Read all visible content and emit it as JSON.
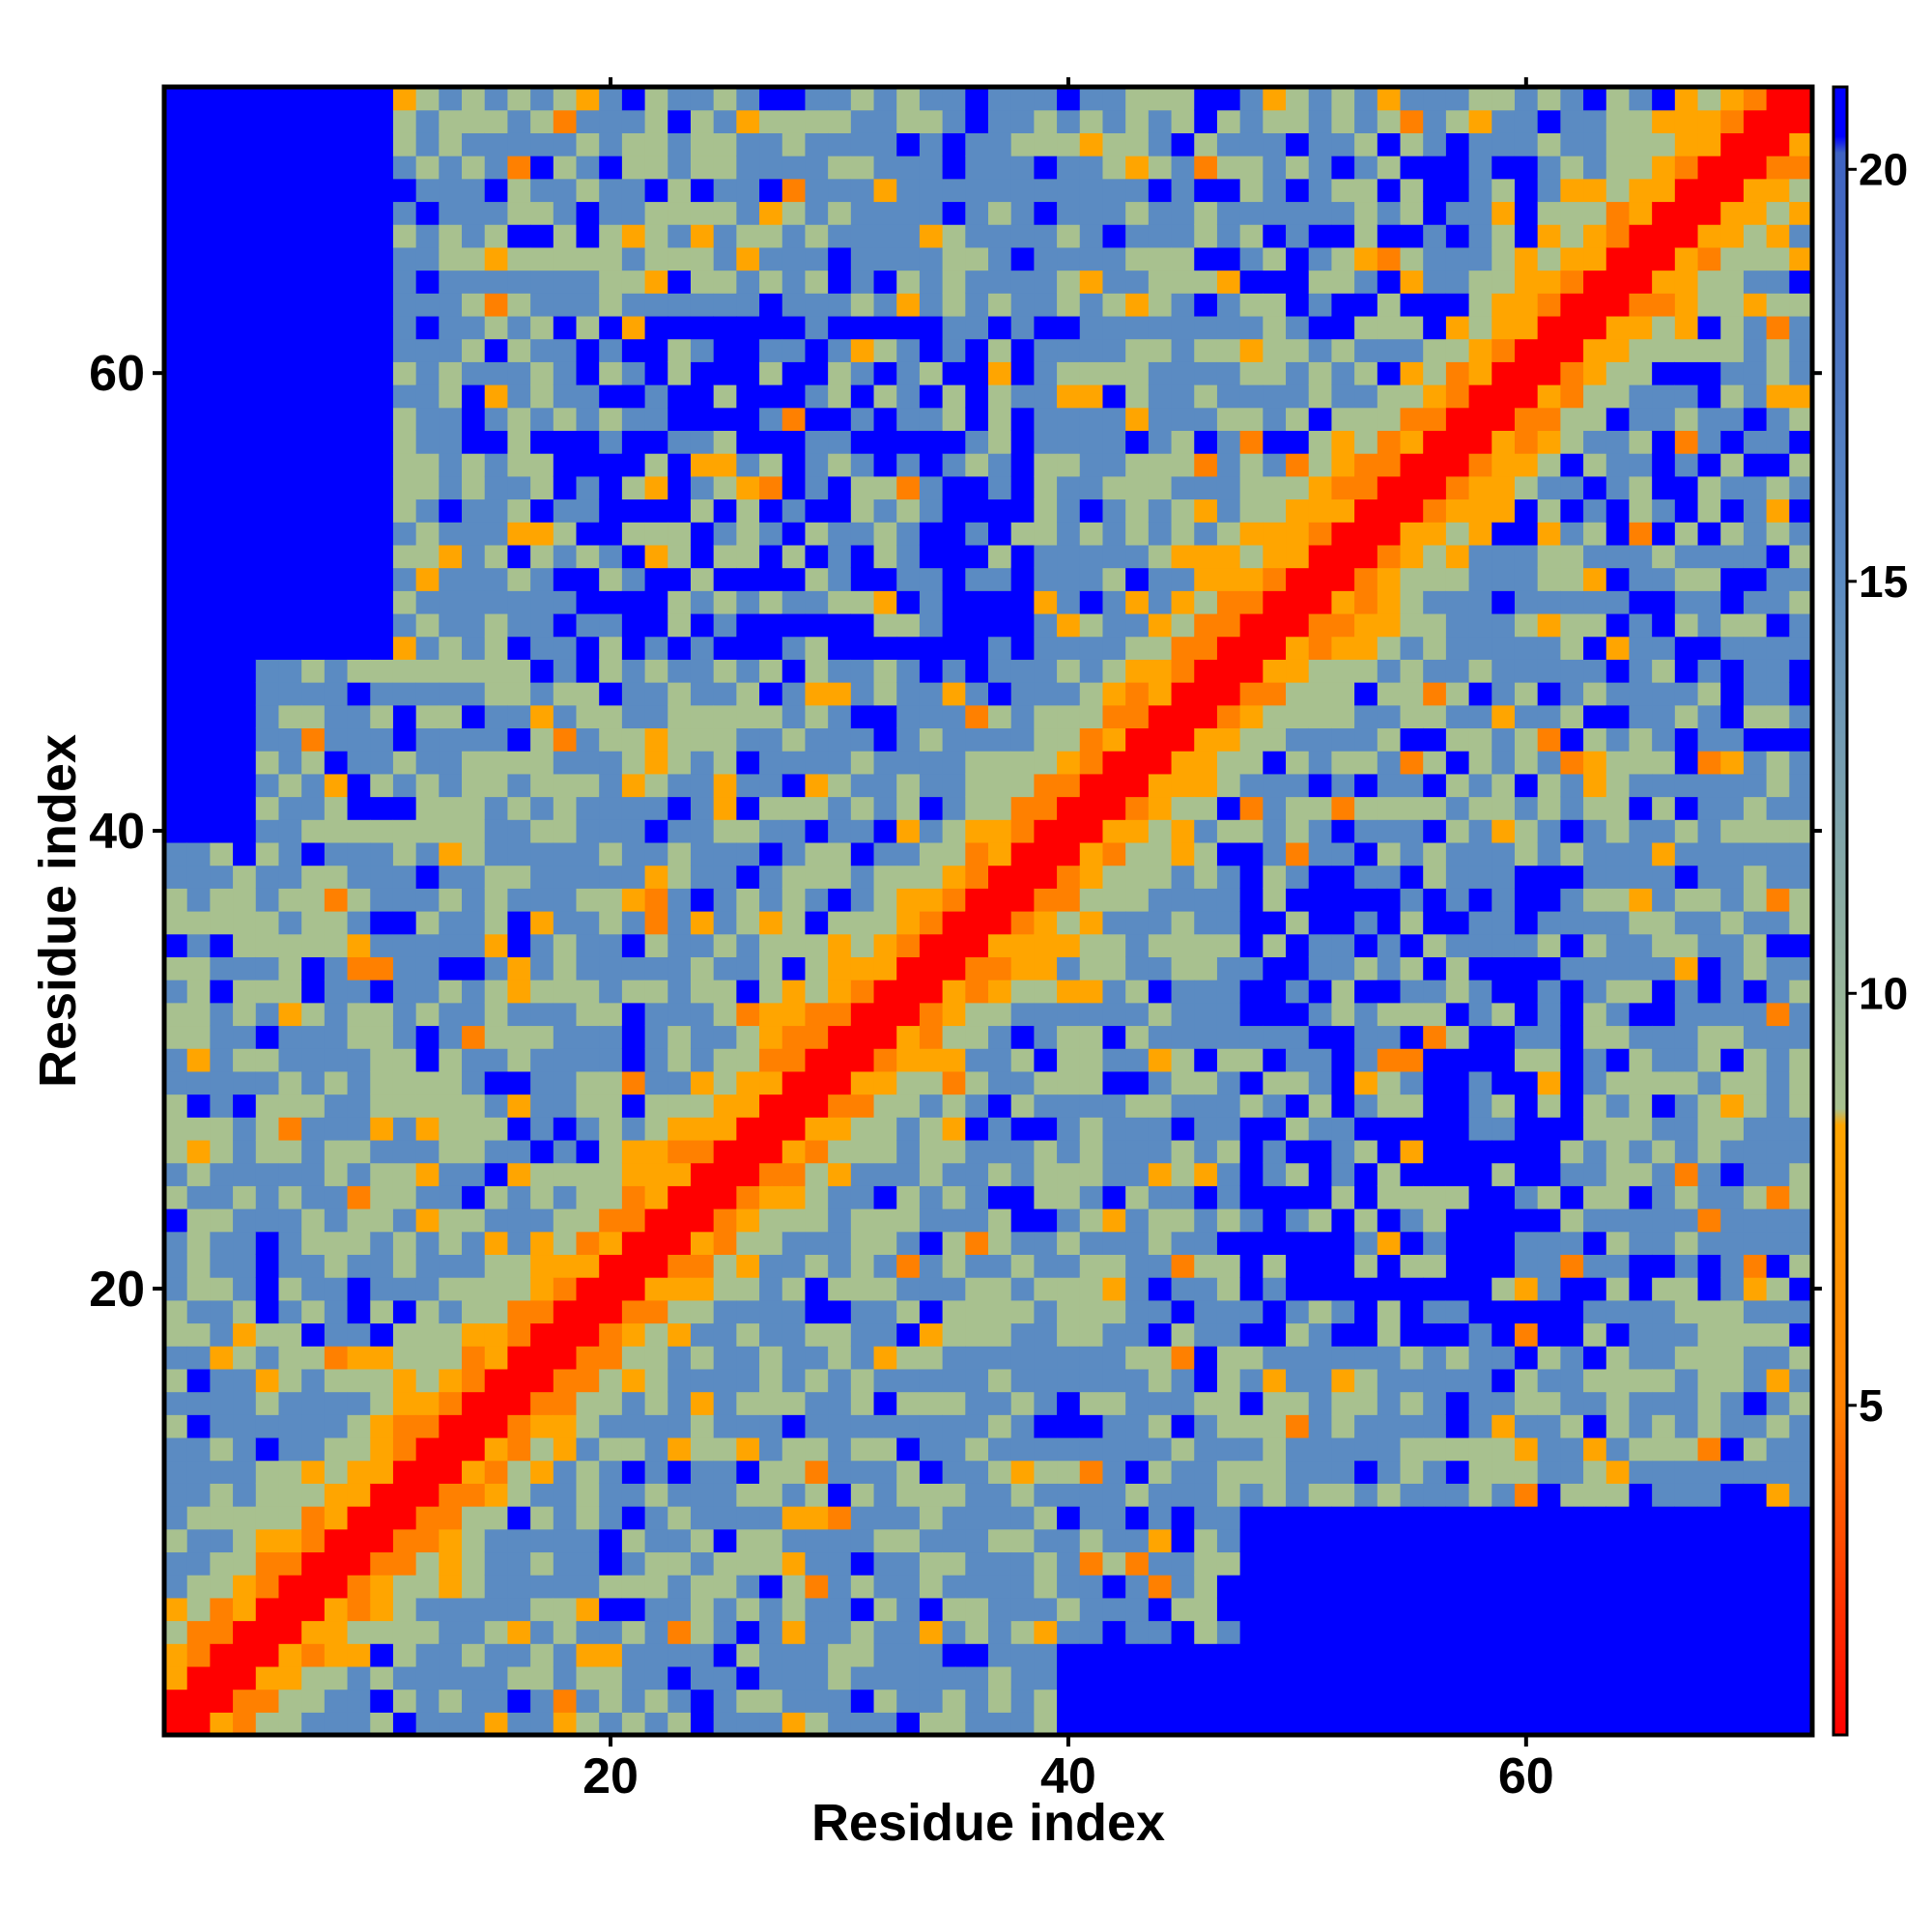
{
  "chart_data": {
    "type": "heatmap",
    "title": "",
    "xlabel": "Residue index",
    "ylabel": "Residue index",
    "x_range": [
      1,
      72
    ],
    "y_range": [
      1,
      72
    ],
    "x_ticks": [
      20,
      40,
      60
    ],
    "y_ticks": [
      20,
      40,
      60
    ],
    "x_tick_labels": [
      "20",
      "40",
      "60"
    ],
    "y_tick_labels": [
      "20",
      "40",
      "60"
    ],
    "colorbar": {
      "range": [
        1,
        21
      ],
      "ticks": [
        5,
        10,
        15,
        20
      ],
      "tick_labels": [
        "5",
        "10",
        "15",
        "20"
      ],
      "colors": [
        "#ff0000",
        "#ff8000",
        "#ffa500",
        "#a8c18f",
        "#5b8bc2",
        "#0000ff"
      ]
    },
    "matrix_description_values": {
      "diagonal_value": 1,
      "near_diagonal_values": [
        4,
        6
      ],
      "background_values": [
        10,
        14,
        18
      ],
      "far_contact_value": 21
    },
    "grid": false,
    "legend": "colorbar-right"
  }
}
